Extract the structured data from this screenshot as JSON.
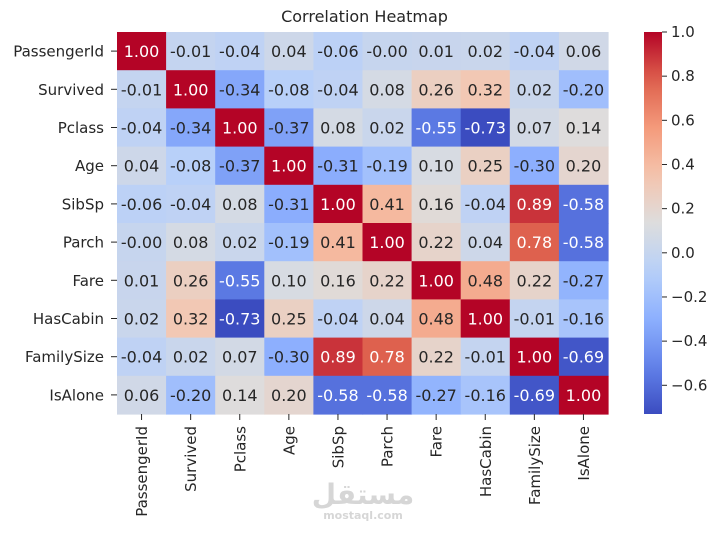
{
  "chart_data": {
    "type": "heatmap",
    "title": "Correlation Heatmap",
    "rows": [
      "PassengerId",
      "Survived",
      "Pclass",
      "Age",
      "SibSp",
      "Parch",
      "Fare",
      "HasCabin",
      "FamilySize",
      "IsAlone"
    ],
    "columns": [
      "PassengerId",
      "Survived",
      "Pclass",
      "Age",
      "SibSp",
      "Parch",
      "Fare",
      "HasCabin",
      "FamilySize",
      "IsAlone"
    ],
    "values": [
      [
        1.0,
        -0.01,
        -0.04,
        0.04,
        -0.06,
        -0.0,
        0.01,
        0.02,
        -0.04,
        0.06
      ],
      [
        -0.01,
        1.0,
        -0.34,
        -0.08,
        -0.04,
        0.08,
        0.26,
        0.32,
        0.02,
        -0.2
      ],
      [
        -0.04,
        -0.34,
        1.0,
        -0.37,
        0.08,
        0.02,
        -0.55,
        -0.73,
        0.07,
        0.14
      ],
      [
        0.04,
        -0.08,
        -0.37,
        1.0,
        -0.31,
        -0.19,
        0.1,
        0.25,
        -0.3,
        0.2
      ],
      [
        -0.06,
        -0.04,
        0.08,
        -0.31,
        1.0,
        0.41,
        0.16,
        -0.04,
        0.89,
        -0.58
      ],
      [
        -0.0,
        0.08,
        0.02,
        -0.19,
        0.41,
        1.0,
        0.22,
        0.04,
        0.78,
        -0.58
      ],
      [
        0.01,
        0.26,
        -0.55,
        0.1,
        0.16,
        0.22,
        1.0,
        0.48,
        0.22,
        -0.27
      ],
      [
        0.02,
        0.32,
        -0.73,
        0.25,
        -0.04,
        0.04,
        0.48,
        1.0,
        -0.01,
        -0.16
      ],
      [
        -0.04,
        0.02,
        0.07,
        -0.3,
        0.89,
        0.78,
        0.22,
        -0.01,
        1.0,
        -0.69
      ],
      [
        0.06,
        -0.2,
        0.14,
        0.2,
        -0.58,
        -0.58,
        -0.27,
        -0.16,
        -0.69,
        1.0
      ]
    ],
    "value_format": "0.00",
    "colormap": "coolwarm",
    "vmin": -0.73,
    "vmax": 1.0,
    "colorbar_ticks": [
      1.0,
      0.8,
      0.6,
      0.4,
      0.2,
      0.0,
      -0.2,
      -0.4,
      -0.6
    ],
    "colorbar_tick_labels": [
      "1.0",
      "0.8",
      "0.6",
      "0.4",
      "0.2",
      "0.0",
      "−0.2",
      "−0.4",
      "−0.6"
    ]
  },
  "watermark": {
    "arabic": "مستقل",
    "latin": "mostaql.com"
  },
  "colors": {
    "cold": "#3b4cc0",
    "neutral": "#dddddd",
    "warm": "#b40426",
    "text_dark": "#262626",
    "text_light": "#ffffff"
  }
}
